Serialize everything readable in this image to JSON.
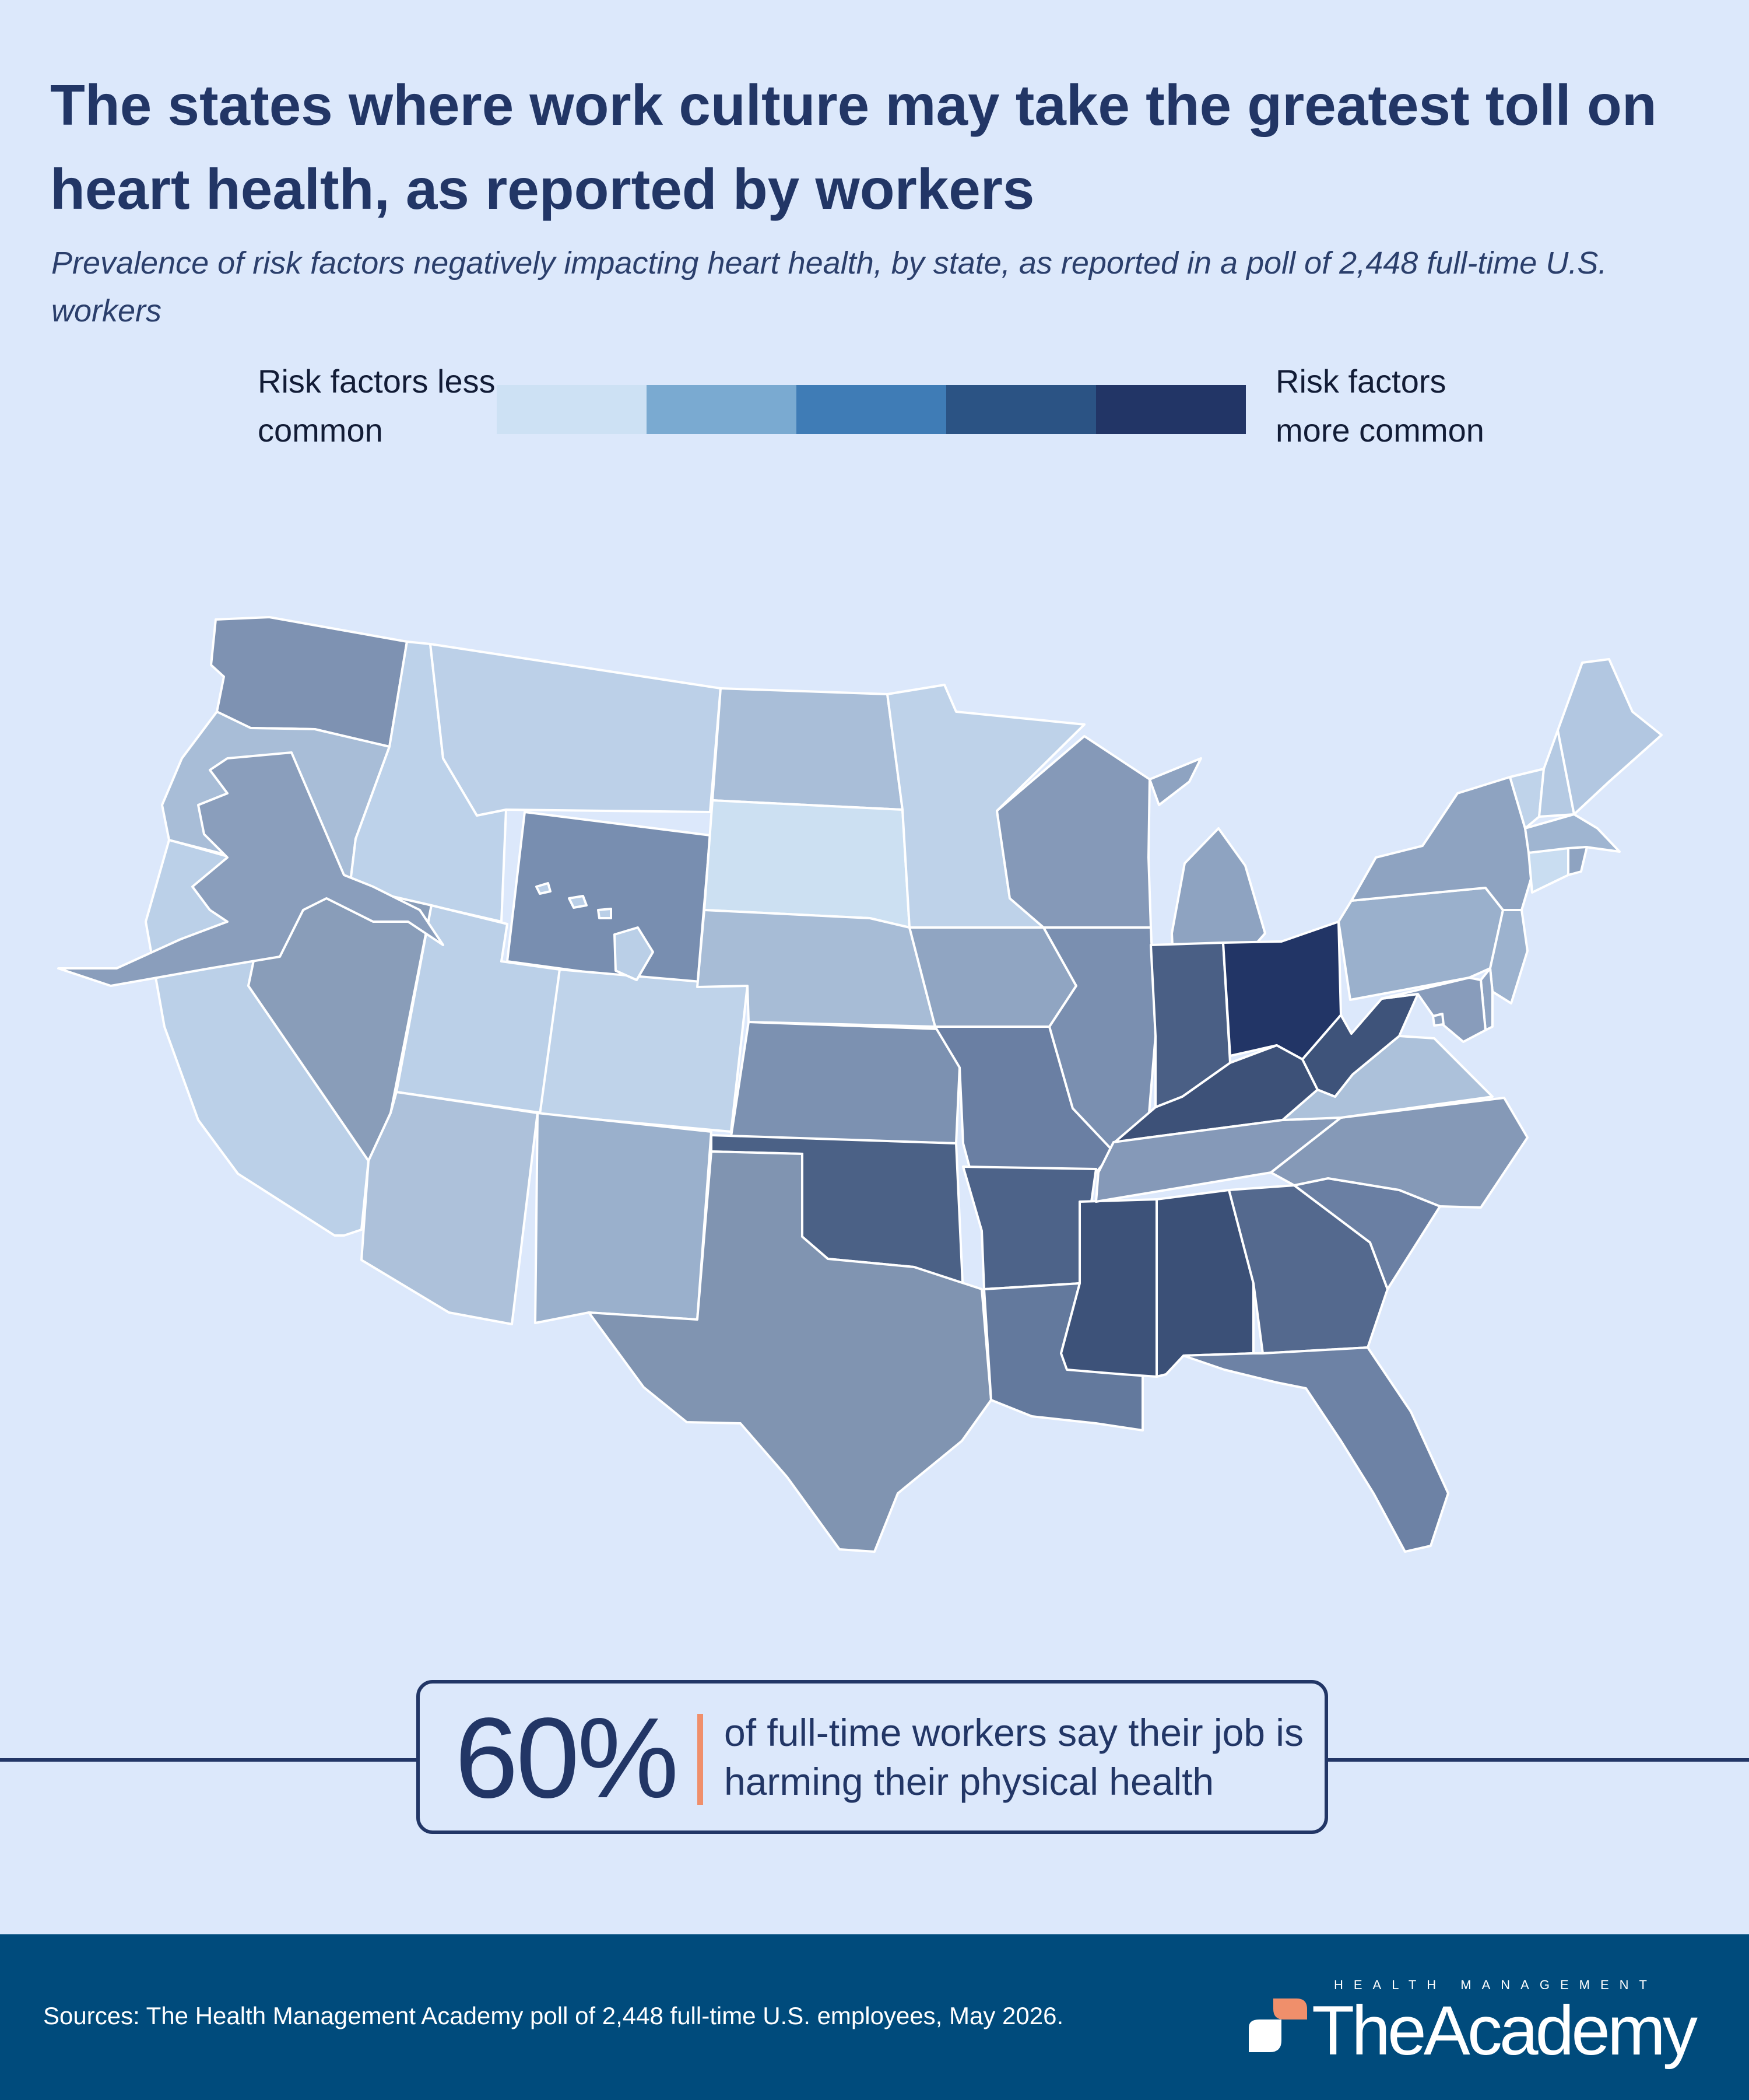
{
  "title": "The states where work culture may take the greatest toll on heart health, as reported by workers",
  "subtitle": "Prevalence of risk factors negatively impacting heart health, by state, as reported in a poll of 2,448 full-time U.S. workers",
  "legend": {
    "low_label": "Risk factors less common",
    "high_label": "Risk factors more common",
    "colors": [
      "#cde1f4",
      "#7aaad1",
      "#3f7cb6",
      "#2b5384",
      "#223566"
    ]
  },
  "map": {
    "state_colors": {
      "WA": "#7e92b2",
      "OR": "#a8bdd7",
      "CA": "#bbd0e8",
      "ID": "#bdd2ea",
      "NV": "#899db9",
      "MT": "#bcd0e8",
      "WY": "#788eb0",
      "UT": "#bbd0e8",
      "CO": "#bfd3ea",
      "AZ": "#adc1da",
      "NM": "#9ab0cc",
      "ND": "#a9bed8",
      "SD": "#cce0f2",
      "NE": "#a7bcd6",
      "KS": "#7c91b1",
      "OK": "#4b6186",
      "TX": "#8094b1",
      "MN": "#bed2e9",
      "IA": "#90a5c2",
      "MO": "#6a7fa3",
      "AR": "#4d6389",
      "LA": "#63799d",
      "WI": "#8599b8",
      "IL": "#7a8fb0",
      "MS": "#3d5279",
      "MI": "#8ea3c1",
      "IN": "#4a5f85",
      "OH": "#223566",
      "KY": "#3d5178",
      "TN": "#8599b8",
      "AL": "#3b5077",
      "GA": "#54698e",
      "FL": "#6d82a5",
      "SC": "#6a7fa3",
      "NC": "#8599b7",
      "VA": "#acc1da",
      "WV": "#3e537a",
      "PA": "#9ab0cc",
      "NY": "#8ea3c1",
      "VT": "#bfd3ea",
      "NH": "#b5cae3",
      "ME": "#b2c7e1",
      "MA": "#9fb5d1",
      "CT": "#c9ddf1",
      "RI": "#8ea3c1",
      "NJ": "#9cb2ce",
      "DE": "#8fa4c2",
      "MD": "#889cbb",
      "DC": "#8ea3c1",
      "AK": "#8a9ebc",
      "HI": "#bacfe7"
    }
  },
  "callout": {
    "stat": "60%",
    "text": "of full-time workers say their job is harming their physical health"
  },
  "footer": {
    "sources": "Sources: The Health Management Academy poll of 2,448 full-time U.S. employees, May 2026.",
    "brand_small": "HEALTH MANAGEMENT",
    "brand_name": "TheAcademy"
  }
}
